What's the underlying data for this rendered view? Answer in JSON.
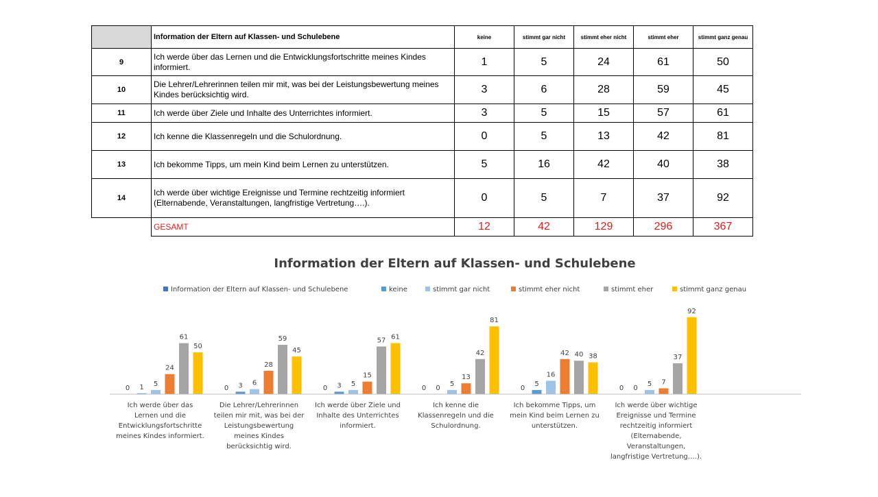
{
  "table": {
    "header": {
      "title": "Information der Eltern auf Klassen- und Schulebene",
      "columns": [
        "keine",
        "stimmt gar nicht",
        "stimmt eher nicht",
        "stimmt eher",
        "stimmt ganz genau"
      ]
    },
    "rows": [
      {
        "num": "9",
        "statement": "Ich werde über das Lernen und die Entwicklungsfortschritte meines Kindes informiert.",
        "values": [
          "1",
          "5",
          "24",
          "61",
          "50"
        ]
      },
      {
        "num": "10",
        "statement": "Die Lehrer/Lehrerinnen teilen mir mit, was bei der Leistungsbewertung meines Kindes berücksichtig wird.",
        "values": [
          "3",
          "6",
          "28",
          "59",
          "45"
        ]
      },
      {
        "num": "11",
        "statement": "Ich werde über Ziele und Inhalte des Unterrichtes informiert.",
        "values": [
          "3",
          "5",
          "15",
          "57",
          "61"
        ]
      },
      {
        "num": "12",
        "statement": "Ich kenne die Klassenregeln und die Schulordnung.",
        "values": [
          "0",
          "5",
          "13",
          "42",
          "81"
        ]
      },
      {
        "num": "13",
        "statement": "Ich bekomme Tipps, um mein Kind beim Lernen zu unterstützen.",
        "values": [
          "5",
          "16",
          "42",
          "40",
          "38"
        ]
      },
      {
        "num": "14",
        "statement": "Ich werde über wichtige Ereignisse und Termine rechtzeitig informiert (Elternabende, Veranstaltungen, langfristige Vertretung….).",
        "values": [
          "0",
          "5",
          "7",
          "37",
          "92"
        ]
      }
    ],
    "total": {
      "label": "GESAMT",
      "values": [
        "12",
        "42",
        "129",
        "296",
        "367"
      ]
    }
  },
  "colors": {
    "series": [
      "#4472c4",
      "#5b9bd5",
      "#9dc3e6",
      "#ed7d31",
      "#a5a5a5",
      "#ffc000"
    ],
    "total_text": "#e81b1b"
  },
  "chart_data": {
    "type": "bar",
    "title": "Information der Eltern auf Klassen- und Schulebene",
    "legend_position": "top",
    "grid": false,
    "ylim": [
      0,
      100
    ],
    "categories": [
      "Ich werde über das Lernen und die Entwicklungsfortschritte meines Kindes informiert.",
      "Die Lehrer/Lehrerinnen teilen mir mit, was bei der Leistungsbewertung meines Kindes berücksichtig wird.",
      "Ich werde über Ziele und Inhalte des Unterrichtes informiert.",
      "Ich kenne die Klassenregeln und die Schulordnung.",
      "Ich bekomme Tipps, um mein Kind beim Lernen zu unterstützen.",
      "Ich werde über wichtige Ereignisse und Termine rechtzeitig informiert (Elternabende, Veranstaltungen, langfristige Vertretung….)."
    ],
    "category_lines": [
      [
        "Ich werde über das",
        "Lernen und die",
        "Entwicklungsfortschritte",
        "meines Kindes informiert."
      ],
      [
        "Die Lehrer/Lehrerinnen",
        "teilen mir mit, was bei der",
        "Leistungsbewertung",
        "meines Kindes",
        "berücksichtig wird."
      ],
      [
        "Ich werde über Ziele und",
        "Inhalte des Unterrichtes",
        "informiert."
      ],
      [
        "Ich kenne die",
        "Klassenregeln und die",
        "Schulordnung."
      ],
      [
        "Ich bekomme Tipps, um",
        "mein Kind beim Lernen zu",
        "unterstützen."
      ],
      [
        "Ich werde über wichtige",
        "Ereignisse und Termine",
        "rechtzeitig informiert",
        "(Elternabende,",
        "Veranstaltungen,",
        "langfristige Vertretung….)."
      ]
    ],
    "series": [
      {
        "name": "Information der Eltern auf Klassen- und Schulebene",
        "values": [
          0,
          0,
          0,
          0,
          0,
          0
        ],
        "labels": [
          "0",
          "0",
          "0",
          "0",
          "0",
          "0"
        ]
      },
      {
        "name": "keine",
        "values": [
          1,
          3,
          3,
          0,
          5,
          0
        ]
      },
      {
        "name": "stimmt gar nicht",
        "values": [
          5,
          6,
          5,
          5,
          16,
          5
        ]
      },
      {
        "name": "stimmt eher nicht",
        "values": [
          24,
          28,
          15,
          13,
          42,
          7
        ]
      },
      {
        "name": "stimmt eher",
        "values": [
          61,
          59,
          57,
          42,
          40,
          37
        ]
      },
      {
        "name": "stimmt ganz genau",
        "values": [
          50,
          45,
          61,
          81,
          38,
          92
        ]
      }
    ]
  }
}
